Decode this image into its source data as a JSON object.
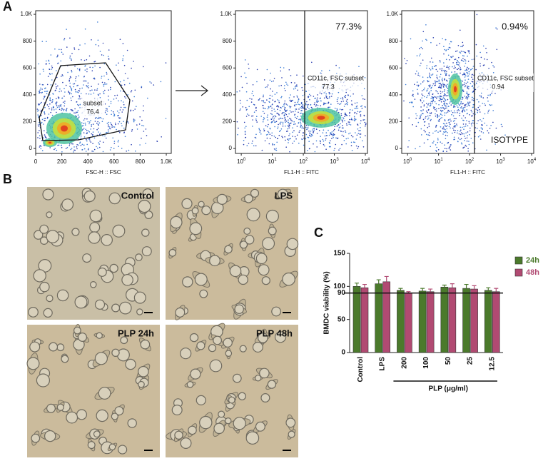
{
  "panel_labels": [
    "A",
    "B",
    "C"
  ],
  "flow_plots": [
    {
      "xlim": [
        0,
        1038
      ],
      "ylim": [
        -37,
        1027
      ],
      "x_log": false,
      "xticks": [
        0,
        200,
        400,
        600,
        800,
        {
          "value": 1000,
          "label": "1.0K"
        }
      ],
      "yticks": [
        0,
        200,
        400,
        600,
        800,
        {
          "value": 1000,
          "label": "1.0K"
        }
      ],
      "x_label": "FSC-H :: FSC",
      "gate_name": "subset",
      "gate_value": 76.4
    },
    {
      "xlim": [
        0.65,
        11700
      ],
      "ylim": [
        -37,
        1027
      ],
      "x_log": true,
      "xticks": [
        {
          "value": 1,
          "label": "10",
          "exponent": "0"
        },
        {
          "value": 10,
          "label": "10",
          "exponent": "1"
        },
        {
          "value": 100,
          "label": "10",
          "exponent": "2"
        },
        {
          "value": 1000,
          "label": "10",
          "exponent": "3"
        },
        {
          "value": 10000,
          "label": "10",
          "exponent": "4"
        }
      ],
      "yticks": [
        0,
        200,
        400,
        600,
        800,
        {
          "value": 1000,
          "label": "1.0K"
        }
      ],
      "x_label": "FL1-H :: FITC",
      "gate_name": "CD11c, FSC subset",
      "gate_value": 77.3,
      "corner_label": "77.3%"
    },
    {
      "xlim": [
        0.65,
        11700
      ],
      "ylim": [
        -37,
        1027
      ],
      "x_log": true,
      "xticks": [
        {
          "value": 1,
          "label": "10",
          "exponent": "0"
        },
        {
          "value": 10,
          "label": "10",
          "exponent": "1"
        },
        {
          "value": 100,
          "label": "10",
          "exponent": "2"
        },
        {
          "value": 1000,
          "label": "10",
          "exponent": "3"
        },
        {
          "value": 10000,
          "label": "10",
          "exponent": "4"
        }
      ],
      "yticks": [
        0,
        200,
        400,
        600,
        800,
        {
          "value": 1000,
          "label": "1.0K"
        }
      ],
      "x_label": "FL1-H :: FITC",
      "gate_name": "CD11c, FSC subset",
      "gate_value": 0.94,
      "corner_label": "0.94%",
      "extra_label": "ISOTYPE"
    }
  ],
  "micrographs": [
    "Control",
    "LPS",
    "PLP 24h",
    "PLP 48h"
  ],
  "chart_data": {
    "type": "bar",
    "y_label": "BMDC viability (%)",
    "categories": [
      "Control",
      "LPS",
      "200",
      "100",
      "50",
      "25",
      "12.5"
    ],
    "group_label": "PLP (μg/ml)",
    "ylim": [
      0,
      150
    ],
    "yticks": [
      0,
      50,
      90,
      100,
      150
    ],
    "reference_line": 90,
    "series": [
      {
        "name": "24h",
        "color": "#4b7a2c",
        "values": [
          100,
          104,
          94,
          93,
          99,
          97,
          94
        ],
        "errors": [
          5,
          6,
          3,
          4,
          3,
          6,
          4
        ]
      },
      {
        "name": "48h",
        "color": "#b14a72",
        "values": [
          98,
          107,
          90,
          92,
          98,
          96,
          92
        ],
        "errors": [
          5,
          8,
          2,
          4,
          6,
          5,
          5
        ]
      }
    ]
  }
}
